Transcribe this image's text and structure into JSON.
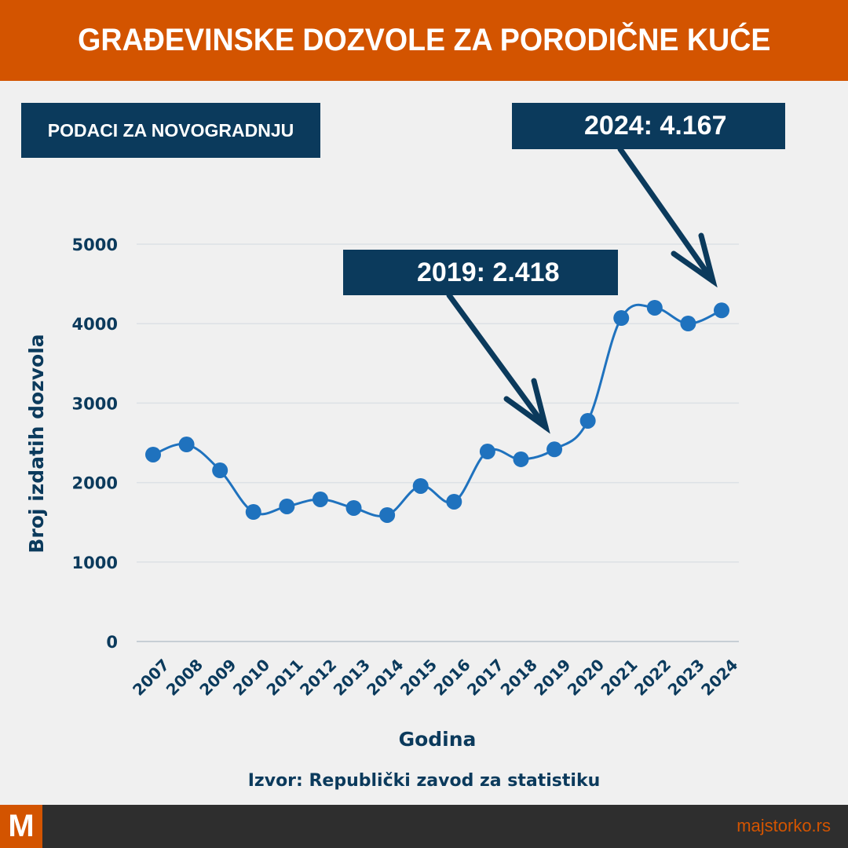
{
  "header": {
    "title": "GRAĐEVINSKE DOZVOLE ZA PORODIČNE KUĆE"
  },
  "subtitle_tag": "PODACI ZA NOVOGRADNJU",
  "annotations": [
    {
      "label": "2024: 4.167",
      "year": "2024",
      "value": 4167
    },
    {
      "label": "2019: 2.418",
      "year": "2019",
      "value": 2418
    }
  ],
  "source": "Izvor: Republički zavod za statistiku",
  "footer": {
    "logo": "M",
    "site": "majstorko.rs"
  },
  "colors": {
    "header_bg": "#d35400",
    "navy": "#0b3a5c",
    "line": "#1f72be",
    "footer_bg": "#2e2e2e",
    "background": "#f0f0f0"
  },
  "chart_data": {
    "type": "line",
    "title": "GRAĐEVINSKE DOZVOLE ZA PORODIČNE KUĆE",
    "subtitle": "PODACI ZA NOVOGRADNJU",
    "xlabel": "Godina",
    "ylabel": "Broj izdatih dozvola",
    "categories": [
      "2007",
      "2008",
      "2009",
      "2010",
      "2011",
      "2012",
      "2013",
      "2014",
      "2015",
      "2016",
      "2017",
      "2018",
      "2019",
      "2020",
      "2021",
      "2022",
      "2023",
      "2024"
    ],
    "series": [
      {
        "name": "Broj izdatih dozvola",
        "values": [
          2352,
          2480,
          2154,
          1630,
          1700,
          1789,
          1680,
          1591,
          1957,
          1759,
          2391,
          2293,
          2418,
          2777,
          4071,
          4200,
          4002,
          4167
        ]
      }
    ],
    "yticks": [
      "0",
      "1000",
      "2000",
      "3000",
      "4000",
      "5000"
    ],
    "ylim": [
      0,
      5000
    ],
    "grid": "horizontal",
    "legend": "none",
    "annotations": [
      "2019: 2.418",
      "2024: 4.167"
    ]
  }
}
